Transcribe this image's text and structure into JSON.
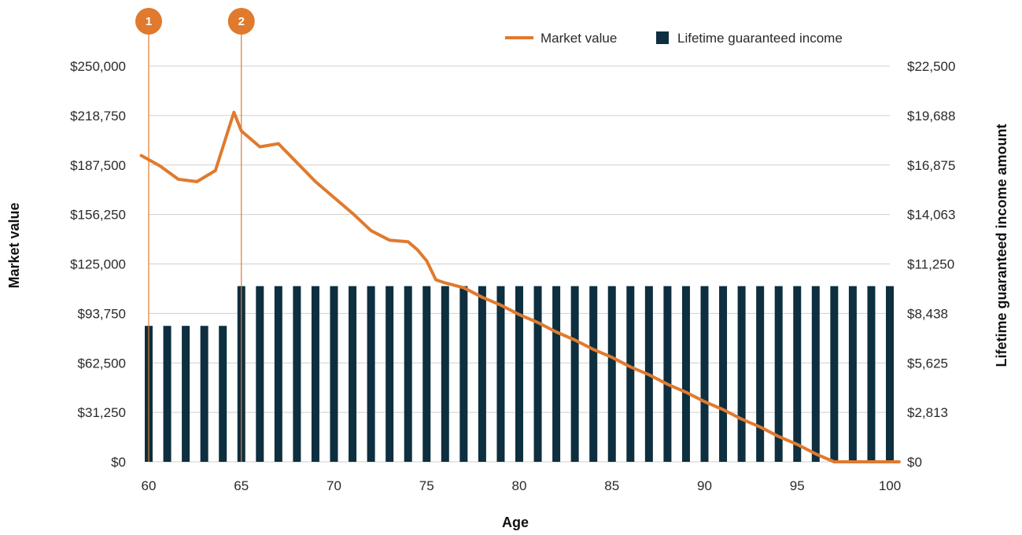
{
  "chart_data": {
    "type": "bar",
    "xlabel": "Age",
    "ylabel_left": "Market value",
    "ylabel_right": "Lifetime guaranteed income amount",
    "x_ticks": [
      "60",
      "65",
      "70",
      "75",
      "80",
      "85",
      "90",
      "95",
      "100"
    ],
    "x_range": [
      60,
      100
    ],
    "y_left_ticks": [
      "$0",
      "$31,250",
      "$62,500",
      "$93,750",
      "$125,000",
      "$156,250",
      "$187,500",
      "$218,750",
      "$250,000"
    ],
    "y_left_range": [
      0,
      250000
    ],
    "y_right_ticks": [
      "$0",
      "$2,813",
      "$5,625",
      "$8,438",
      "$11,250",
      "$14,063",
      "$16,875",
      "$19,688",
      "$22,500"
    ],
    "y_right_range": [
      0,
      22500
    ],
    "grid": "horizontal",
    "legend_position": "top-right",
    "legend": [
      {
        "label": "Market value",
        "kind": "line",
        "color": "#e07a2e"
      },
      {
        "label": "Lifetime guaranteed income",
        "kind": "square",
        "color": "#0d2f3f"
      }
    ],
    "markers": [
      {
        "label": "1",
        "x": 60
      },
      {
        "label": "2",
        "x": 65
      }
    ],
    "series": [
      {
        "name": "Lifetime guaranteed income",
        "type": "bar",
        "axis": "right",
        "color": "#0d2f3f",
        "x": [
          60,
          61,
          62,
          63,
          64,
          65,
          66,
          67,
          68,
          69,
          70,
          71,
          72,
          73,
          74,
          75,
          76,
          77,
          78,
          79,
          80,
          81,
          82,
          83,
          84,
          85,
          86,
          87,
          88,
          89,
          90,
          91,
          92,
          93,
          94,
          95,
          96,
          97,
          98,
          99,
          100
        ],
        "values": [
          7730,
          7730,
          7730,
          7730,
          7730,
          9990,
          9990,
          9990,
          9990,
          9990,
          9990,
          9990,
          9990,
          9990,
          9990,
          9990,
          9990,
          9990,
          9990,
          9990,
          9990,
          9990,
          9990,
          9990,
          9990,
          9990,
          9990,
          9990,
          9990,
          9990,
          9990,
          9990,
          9990,
          9990,
          9990,
          9990,
          9990,
          9990,
          9990,
          9990,
          9990
        ]
      },
      {
        "name": "Market value",
        "type": "line",
        "axis": "left",
        "color": "#e07a2e",
        "x": [
          59.6,
          60.6,
          61.6,
          62.6,
          63.6,
          64.6,
          65.0,
          66.0,
          67.0,
          68.0,
          69.0,
          70.0,
          71.0,
          72.0,
          73.0,
          74.0,
          74.5,
          75.0,
          75.5,
          76.0,
          77.0,
          78.0,
          79.0,
          80.0,
          81.0,
          82.0,
          83.0,
          84.0,
          85.0,
          86.0,
          87.0,
          88.0,
          89.0,
          90.0,
          91.0,
          92.0,
          93.0,
          94.0,
          95.0,
          96.0,
          97.0,
          98.0,
          99.0,
          100.5
        ],
        "values": [
          193500,
          187000,
          178500,
          177000,
          184000,
          220800,
          209000,
          199000,
          201000,
          189000,
          177000,
          167000,
          157000,
          146000,
          140000,
          139000,
          134000,
          127000,
          115000,
          113000,
          110000,
          104000,
          99000,
          93000,
          88000,
          82000,
          77000,
          71000,
          66000,
          60000,
          55000,
          49000,
          44000,
          38000,
          33000,
          27000,
          22000,
          16000,
          11000,
          5000,
          0,
          0,
          0,
          0
        ]
      }
    ]
  }
}
